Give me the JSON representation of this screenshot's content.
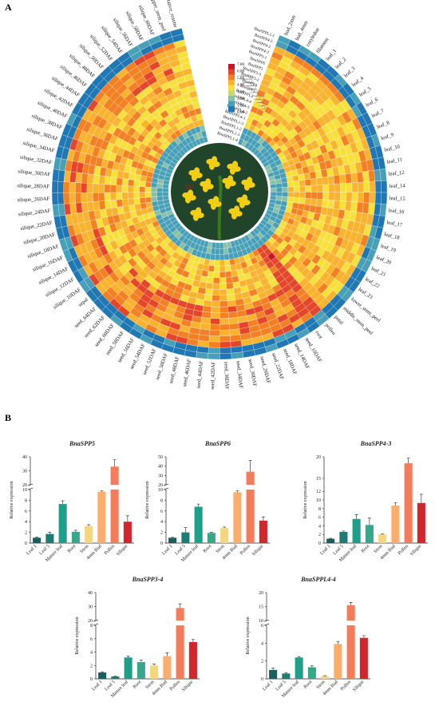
{
  "panels": {
    "a_letter": "A",
    "b_letter": "B"
  },
  "colors": {
    "scale": [
      "#1f78b4",
      "#47a0b8",
      "#88c0a8",
      "#c9d86e",
      "#f7e03c",
      "#f9b32e",
      "#f48024",
      "#e5462a",
      "#c5162b"
    ],
    "bars": [
      "#1a5e5e",
      "#1e7c73",
      "#1f9e8a",
      "#36a889",
      "#f4d67d",
      "#fbae6b",
      "#f47c5a",
      "#d1262c"
    ],
    "stem": "#3a7a1e",
    "flower": "#f2cf12",
    "sky": "#21452a"
  },
  "chart_data": [
    {
      "type": "heatmap",
      "title": "",
      "legend": {
        "ticks": [
          "7.00",
          "6.00",
          "5.00",
          "4.00",
          "3.00",
          "2.00",
          "1.00",
          "0.00"
        ],
        "min": 0,
        "max": 7
      },
      "genes": [
        "BnaSPPL1-4",
        "BnaSPPL1-3",
        "BnaSPPL1-2",
        "BnaSPPL1-5",
        "BnaSPPL4-1",
        "BnaSPPL4-2",
        "BnaSPPL4-3",
        "BnaSPPL4-4",
        "BnaSPPL2",
        "BnaSPP3",
        "BnaSPP4",
        "BnaSPP3-2",
        "BnaSPP3-3",
        "BnaSPP5",
        "BnaSPP6",
        "BnaSPP5-1",
        "BnaSPP4-3",
        "BnaSPP4-2",
        "BnaSPP4-5",
        "BnaSPPL1-1"
      ],
      "tissues": [
        "bud_2mm",
        "bud_4mm",
        "cotyledon",
        "filament",
        "leaf_1",
        "leaf_2",
        "leaf_3",
        "leaf_4",
        "leaf_5",
        "leaf_6",
        "leaf_7",
        "leaf_8",
        "leaf_9",
        "leaf_10",
        "leaf_11",
        "leaf_12",
        "leaf_14",
        "leaf_15",
        "leaf_16",
        "leaf_17",
        "leaf_18",
        "leaf_19",
        "leaf_20",
        "leaf_21",
        "leaf_22",
        "leaf_23",
        "lower_stem_peel",
        "middle_stem_peel",
        "petal",
        "pollen",
        "root",
        "seed_10DAF",
        "seed_14DAF",
        "seed_18DAF",
        "seed_22DAF",
        "seed_26DAF",
        "seed_30DAF",
        "seed_34DAF",
        "seed_38DAF",
        "seed_42DAF",
        "seed_44DAF",
        "seed_46DAF",
        "seed_48DAF",
        "seed_50DAF",
        "seed_52DAF",
        "seed_54DAF",
        "seed_56DAF",
        "seed_58DAF",
        "seed_60DAF",
        "seed_62DAF",
        "seed_64DAF",
        "sepal",
        "silique_10DAF",
        "silique_12DAF",
        "silique_14DAF",
        "silique_16DAF",
        "silique_18DAF",
        "silique_20DAF",
        "silique_22DAF",
        "silique_24DAF",
        "silique_26DAF",
        "silique_28DAF",
        "silique_30DAF",
        "silique_32DAF",
        "silique_34DAF",
        "silique_36DAF",
        "silique_38DAF",
        "silique_40DAF",
        "silique_42DAF",
        "silique_44DAF",
        "silique_46DAF",
        "silique_48DAF",
        "silique_50DAF",
        "silique_52DAF",
        "silique_54DAF",
        "silique_56DAF",
        "silique_58DAF",
        "silique_60DAF",
        "upper_stem_peel",
        "vegetative_rosette"
      ]
    },
    {
      "type": "bar",
      "title": "BnaSPP5",
      "ylabel": "Relative expression",
      "categories": [
        "Leaf 1",
        "Leaf 5",
        "Mature leaf",
        "Root",
        "Stem",
        "4mm Bud",
        "Pollen",
        "Silique"
      ],
      "values": [
        1.0,
        1.7,
        7.3,
        2.1,
        3.2,
        9.6,
        33.0,
        4.0
      ],
      "errors": [
        0.15,
        0.35,
        0.6,
        0.3,
        0.25,
        0.2,
        5.0,
        1.1
      ],
      "break": [
        10,
        20
      ],
      "lower_ticks": [
        "0",
        "2",
        "4",
        "6",
        "8",
        "10"
      ],
      "upper_ticks": [
        "20",
        "30",
        "40"
      ],
      "ylim": [
        0,
        40
      ]
    },
    {
      "type": "bar",
      "title": "BnaSPP6",
      "ylabel": "Relative expression",
      "categories": [
        "Leaf 1",
        "Leaf 5",
        "Mature leaf",
        "Root",
        "Stem",
        "4mm Bud",
        "Pollen",
        "Silique"
      ],
      "values": [
        1.0,
        2.0,
        6.8,
        1.9,
        2.8,
        9.5,
        34.0,
        4.2
      ],
      "errors": [
        0.1,
        0.9,
        0.5,
        0.15,
        0.2,
        0.3,
        12.0,
        0.7
      ],
      "break": [
        10,
        20
      ],
      "lower_ticks": [
        "0",
        "2",
        "4",
        "6",
        "8",
        "10"
      ],
      "upper_ticks": [
        "20",
        "30",
        "40",
        "50"
      ],
      "ylim": [
        0,
        50
      ]
    },
    {
      "type": "bar",
      "title": "BnaSPP4-3",
      "ylabel": "Relative expression",
      "categories": [
        "Leaf 1",
        "Leaf 5",
        "Mature leaf",
        "Root",
        "Stem",
        "4mm Bud",
        "Pollen",
        "Silique"
      ],
      "values": [
        1.0,
        2.6,
        5.6,
        4.2,
        2.0,
        8.7,
        18.5,
        9.3
      ],
      "errors": [
        0.1,
        0.2,
        1.0,
        1.6,
        0.1,
        0.7,
        1.2,
        2.0
      ],
      "lower_ticks": [
        "0",
        "2",
        "4",
        "6",
        "8",
        "10",
        "12",
        "15",
        "20"
      ],
      "ylim": [
        0,
        20
      ]
    },
    {
      "type": "bar",
      "title": "BnaSPP3-4",
      "ylabel": "Relative expression",
      "categories": [
        "Leaf 1",
        "Leaf 5",
        "Mature leaf",
        "Root",
        "Stem",
        "4mm Bud",
        "Pollen",
        "Silique"
      ],
      "values": [
        0.95,
        0.35,
        3.2,
        2.5,
        2.0,
        3.4,
        29.0,
        5.5
      ],
      "errors": [
        0.1,
        0.05,
        0.2,
        0.3,
        0.2,
        0.5,
        3.0,
        0.4
      ],
      "break": [
        8,
        20
      ],
      "lower_ticks": [
        "0",
        "2",
        "4",
        "6",
        "8"
      ],
      "upper_ticks": [
        "20",
        "30",
        "40"
      ],
      "ylim": [
        0,
        40
      ]
    },
    {
      "type": "bar",
      "title": "BnaSPPL4-4",
      "ylabel": "Relative expression",
      "categories": [
        "Leaf 1",
        "Leaf 5",
        "Mature leaf",
        "Root",
        "Stem",
        "4mm Bud",
        "Pollen",
        "Silique"
      ],
      "values": [
        1.0,
        0.6,
        2.4,
        1.3,
        0.3,
        3.9,
        15.5,
        4.6
      ],
      "errors": [
        0.2,
        0.1,
        0.1,
        0.2,
        0.05,
        0.3,
        1.0,
        0.25
      ],
      "break": [
        6,
        10
      ],
      "lower_ticks": [
        "0",
        "2",
        "4",
        "6"
      ],
      "upper_ticks": [
        "10",
        "15",
        "20"
      ],
      "ylim": [
        0,
        20
      ]
    }
  ]
}
